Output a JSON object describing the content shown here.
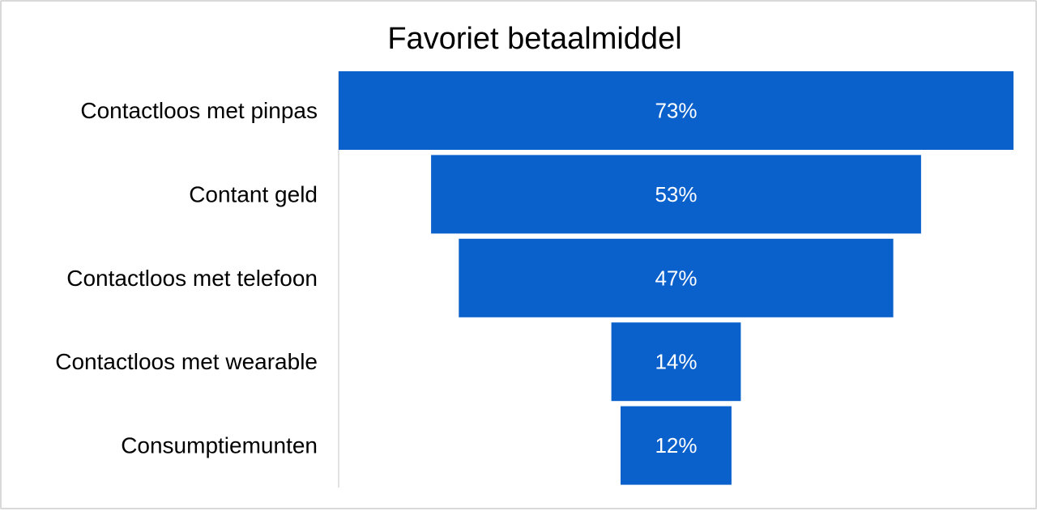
{
  "chart_data": {
    "type": "bar",
    "subtype": "funnel",
    "title": "Favoriet betaalmiddel",
    "categories": [
      "Contactloos met pinpas",
      "Contant geld",
      "Contactloos met telefoon",
      "Contactloos met wearable",
      "Consumptiemunten"
    ],
    "values": [
      73,
      53,
      47,
      14,
      12
    ],
    "value_labels": [
      "73%",
      "53%",
      "47%",
      "14%",
      "12%"
    ],
    "unit": "%",
    "bar_color": "#0b61cc",
    "label_color": "#ffffff",
    "axis_color": "#d9d9d9",
    "grid": false,
    "legend": "none"
  }
}
